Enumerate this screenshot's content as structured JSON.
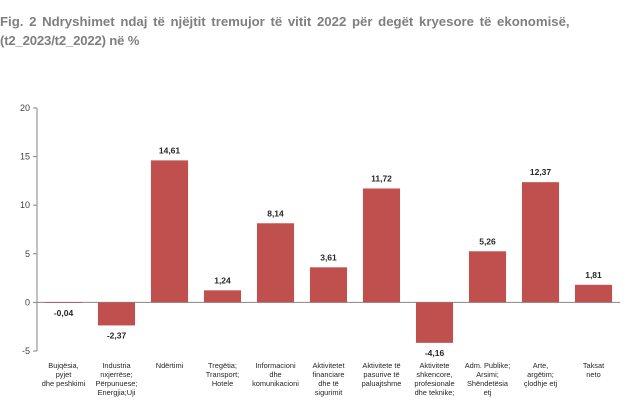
{
  "title_line1": "Fig. 2 Ndryshimet ndaj të njëjtit tremujor të vitit 2022 për degët kryesore të ekonomisë,",
  "title_line2": "(t2_2023/t2_2022) në %",
  "colors": {
    "bar": "#c0504d",
    "axis": "#868686"
  },
  "chart_data": {
    "type": "bar",
    "title": "Fig. 2 Ndryshimet ndaj të njëjtit tremujor të vitit 2022 për degët kryesore të ekonomisë, (t2_2023/t2_2022) në %",
    "ylim": [
      -5,
      20
    ],
    "yticks": [
      -5,
      0,
      5,
      10,
      15,
      20
    ],
    "grid": false,
    "categories": [
      [
        "Bujqësia,",
        "pyjet",
        "dhe peshkimi"
      ],
      [
        "Industria",
        "nxjerrëse;",
        "Përpunuese;",
        "Energjia;Uji"
      ],
      [
        "Ndërtimi"
      ],
      [
        "Tregëtia;",
        "Transport;",
        "Hotele"
      ],
      [
        "Informacioni",
        "dhe",
        "komunikacioni"
      ],
      [
        "Aktivitetet",
        "financiare",
        "dhe të",
        "sigurimit"
      ],
      [
        "Aktivitete të",
        "pasurive të",
        "paluajtshme"
      ],
      [
        "Aktivitete",
        "shkencore,",
        "profesionale",
        "dhe teknike;"
      ],
      [
        "Adm. Publike;",
        "Arsimi;",
        "Shëndetësia",
        "etj"
      ],
      [
        "Arte,",
        "argëtim;",
        "çlodhje etj"
      ],
      [
        "Taksat",
        "neto"
      ]
    ],
    "values": [
      -0.04,
      -2.37,
      14.61,
      1.24,
      8.14,
      3.61,
      11.72,
      -4.16,
      5.26,
      12.37,
      1.81
    ],
    "data_labels": [
      "-0,04",
      "-2,37",
      "14,61",
      "1,24",
      "8,14",
      "3,61",
      "11,72",
      "-4,16",
      "5,26",
      "12,37",
      "1,81"
    ]
  }
}
